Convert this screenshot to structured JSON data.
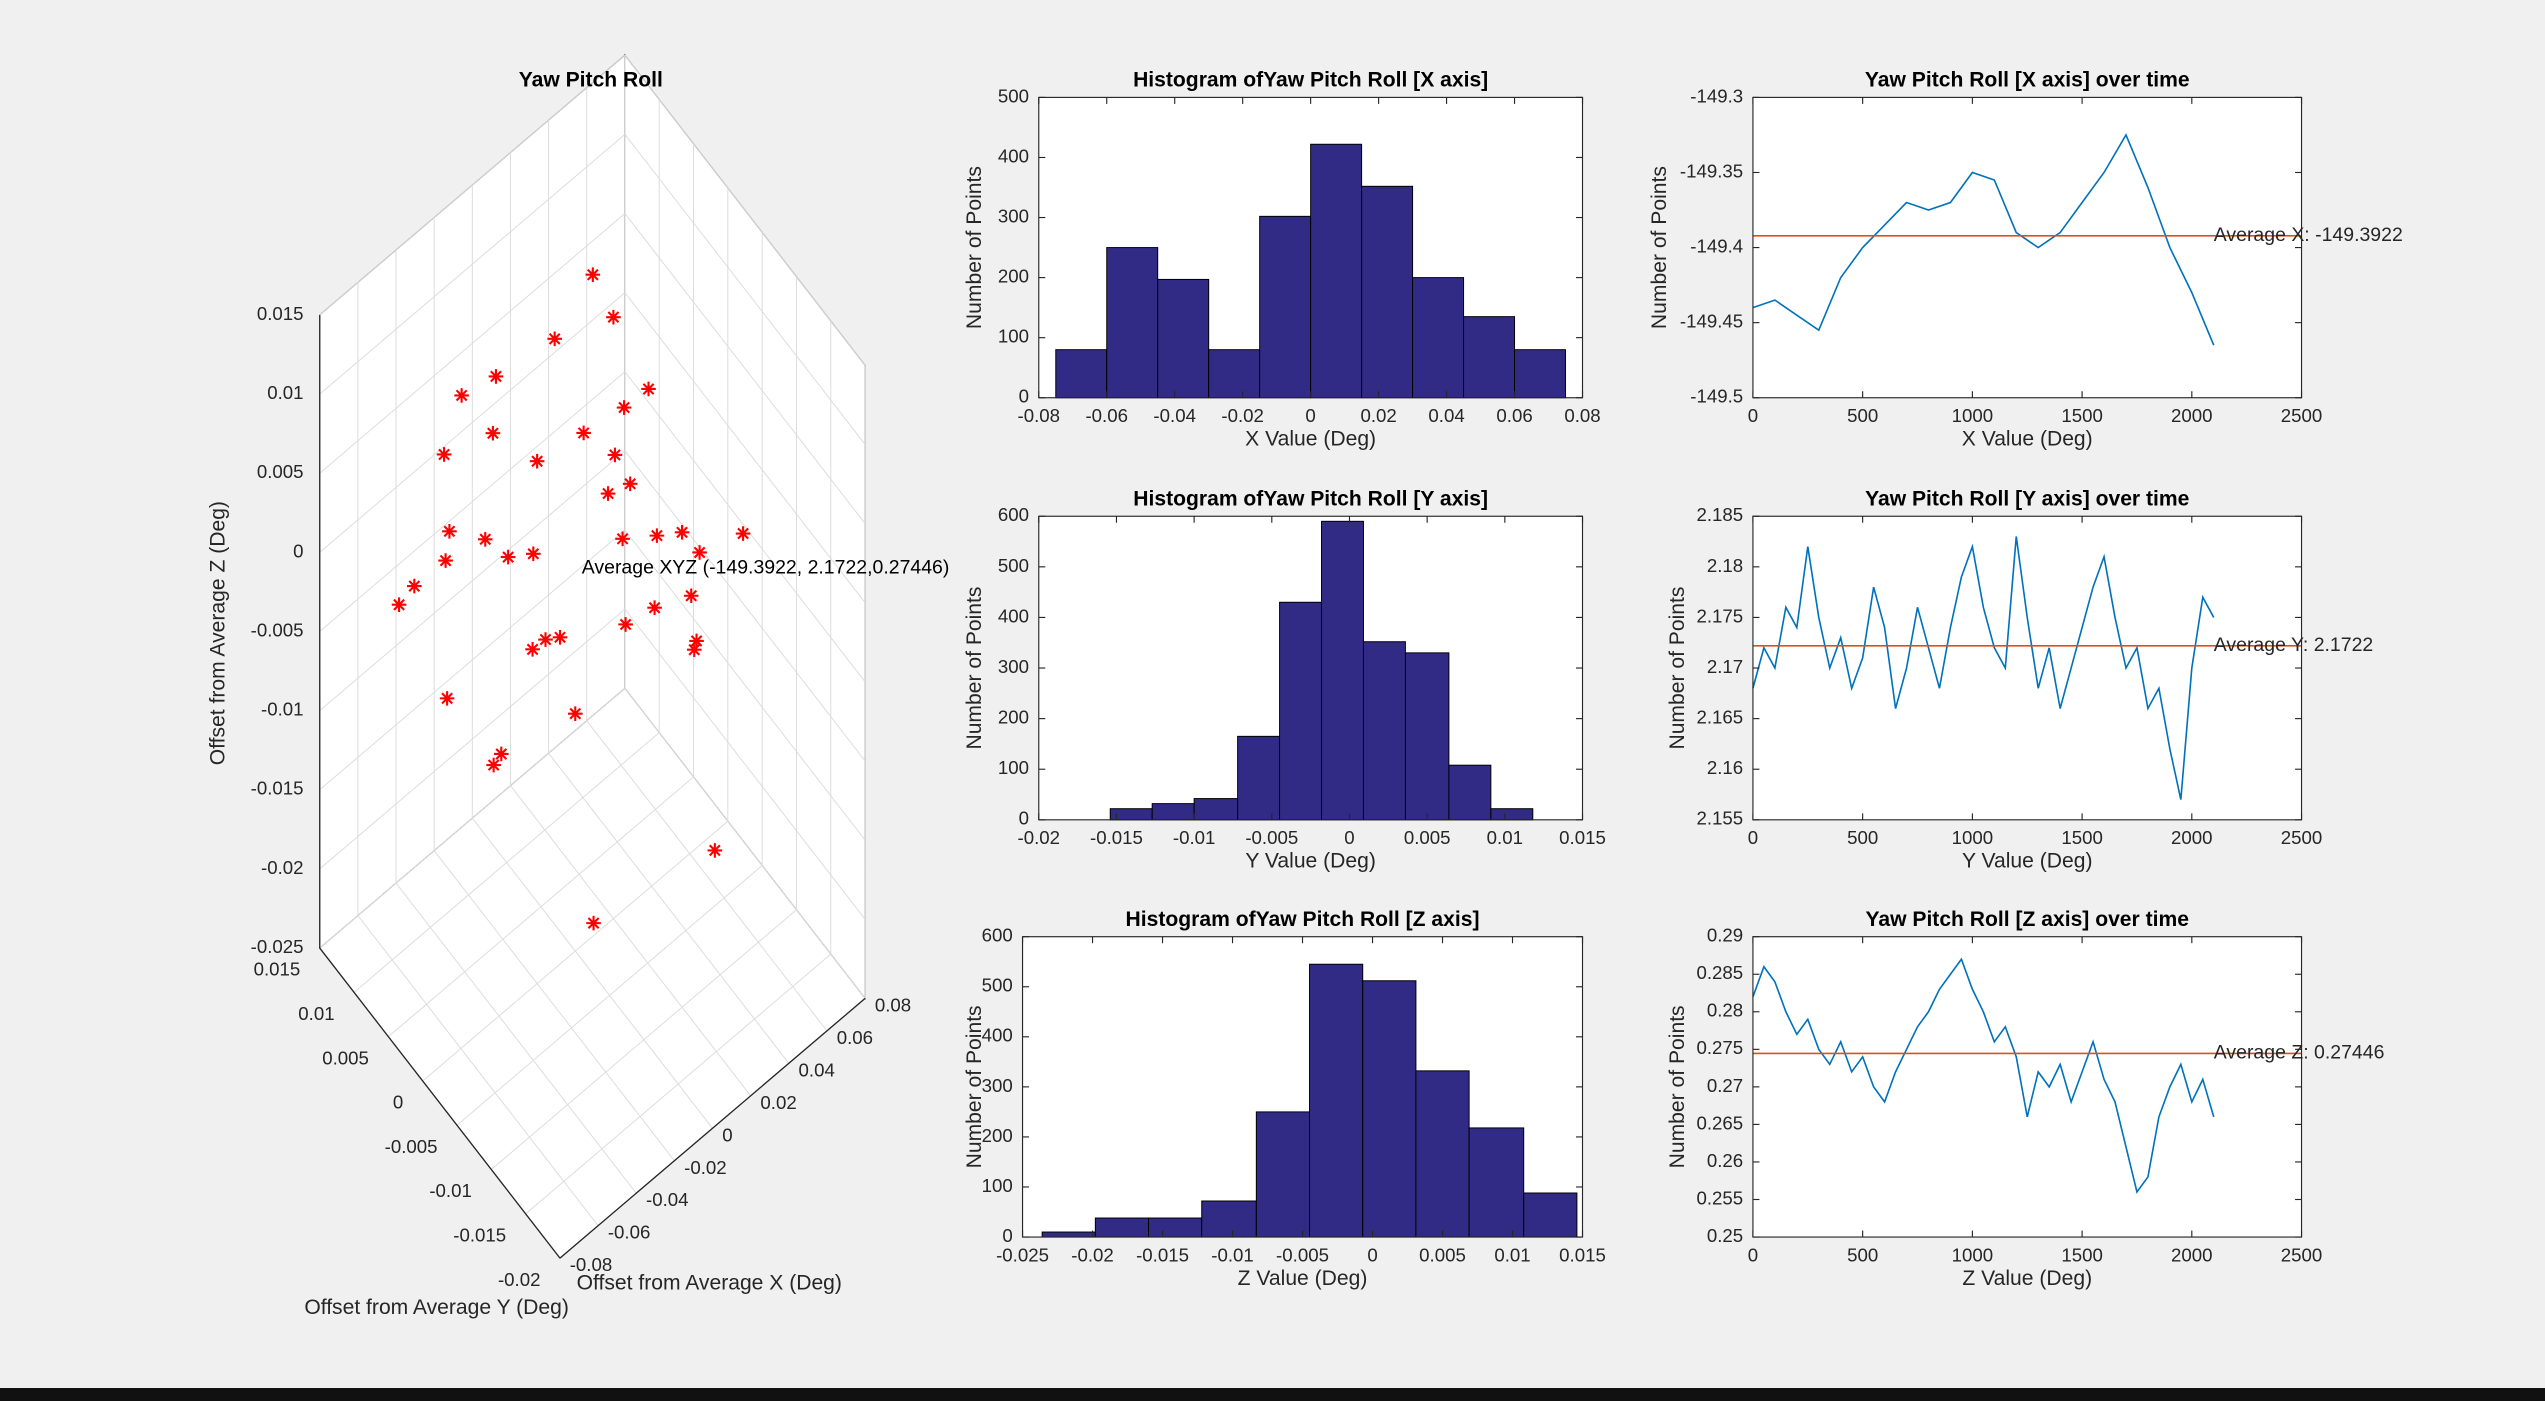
{
  "chart_data": [
    {
      "type": "scatter3d",
      "title": "Yaw Pitch Roll",
      "xlabel": "Offset from Average X (Deg)",
      "ylabel": "Offset from Average Y (Deg)",
      "zlabel": "Offset from Average Z (Deg)",
      "annotation": "Average XYZ (-149.3922, 2.1722,0.27446)",
      "color": "#ff0000",
      "xlim": [
        -0.08,
        0.08
      ],
      "ylim": [
        -0.02,
        0.015
      ],
      "zlim": [
        -0.025,
        0.015
      ],
      "xticks": [
        -0.08,
        -0.06,
        -0.04,
        -0.02,
        0,
        0.02,
        0.04,
        0.06,
        0.08
      ],
      "yticks": [
        -0.02,
        -0.015,
        -0.01,
        -0.005,
        0,
        0.005,
        0.01,
        0.015
      ],
      "zticks": [
        -0.025,
        -0.02,
        -0.015,
        -0.01,
        -0.005,
        0,
        0.005,
        0.01,
        0.015
      ],
      "x": [
        -0.05,
        -0.04,
        -0.06,
        -0.03,
        -0.02,
        0.0,
        0.01,
        0.02,
        0.03,
        0.04,
        0.05,
        0.06,
        -0.01,
        0.0,
        0.01,
        0.02,
        -0.03,
        -0.04,
        0.03,
        0.05,
        -0.02,
        -0.05,
        0.0,
        0.02,
        0.04,
        -0.06,
        -0.01,
        0.01,
        0.03,
        -0.02,
        0.06,
        -0.07,
        0.07,
        0.0,
        -0.03,
        0.02,
        0.05,
        -0.04,
        0.01,
        -0.01
      ],
      "y": [
        0.005,
        0.008,
        0.002,
        -0.004,
        0.0,
        0.003,
        -0.002,
        -0.006,
        0.001,
        0.004,
        -0.003,
        0.006,
        0.007,
        -0.008,
        0.009,
        -0.01,
        0.01,
        -0.005,
        -0.012,
        0.002,
        0.006,
        -0.002,
        0.0,
        0.003,
        -0.007,
        0.009,
        -0.004,
        0.005,
        -0.009,
        0.011,
        -0.001,
        0.004,
        -0.005,
        0.012,
        -0.011,
        0.0,
        0.007,
        0.002,
        -0.003,
        0.008
      ],
      "z": [
        0.002,
        0.006,
        -0.004,
        0.0,
        0.008,
        0.012,
        0.004,
        -0.002,
        -0.008,
        0.003,
        -0.006,
        0.001,
        -0.003,
        0.009,
        -0.012,
        0.005,
        -0.001,
        0.007,
        -0.015,
        -0.005,
        0.01,
        -0.007,
        -0.01,
        0.014,
        0.0,
        -0.002,
        0.011,
        -0.009,
        -0.004,
        0.006,
        -0.011,
        0.003,
        -0.003,
        0.001,
        -0.014,
        0.013,
        -0.008,
        0.004,
        0.007,
        -0.016
      ]
    },
    {
      "type": "histogram",
      "title": "Histogram ofYaw Pitch Roll [X axis]",
      "xlabel": "X Value (Deg)",
      "ylabel": "Number of Points",
      "color": "#312b85",
      "edgecolor": "#000000",
      "xlim": [
        -0.08,
        0.08
      ],
      "xticks": [
        -0.08,
        -0.06,
        -0.04,
        -0.02,
        0,
        0.02,
        0.04,
        0.06,
        0.08
      ],
      "ylim": [
        0,
        500
      ],
      "yticks": [
        0,
        100,
        200,
        300,
        400,
        500
      ],
      "bins": [
        -0.075,
        -0.06,
        -0.045,
        -0.03,
        -0.015,
        0,
        0.015,
        0.03,
        0.045,
        0.06,
        0.075
      ],
      "values": [
        80,
        250,
        197,
        80,
        302,
        422,
        352,
        200,
        135,
        80
      ]
    },
    {
      "type": "line",
      "title": "Yaw Pitch Roll [X axis] over time",
      "xlabel": "X Value (Deg)",
      "ylabel": "Number of Points",
      "xlim": [
        0,
        2500
      ],
      "xticks": [
        0,
        500,
        1000,
        1500,
        2000,
        2500
      ],
      "ylim": [
        -149.5,
        -149.3
      ],
      "yticks": [
        -149.5,
        -149.45,
        -149.4,
        -149.35,
        -149.3
      ],
      "x": [
        0,
        100,
        200,
        300,
        400,
        500,
        600,
        700,
        800,
        900,
        1000,
        1100,
        1200,
        1300,
        1400,
        1500,
        1600,
        1700,
        1800,
        1900,
        2000,
        2100
      ],
      "series": [
        {
          "color": "#0072bd",
          "values": [
            -149.44,
            -149.435,
            -149.445,
            -149.455,
            -149.42,
            -149.4,
            -149.385,
            -149.37,
            -149.375,
            -149.37,
            -149.35,
            -149.355,
            -149.39,
            -149.4,
            -149.39,
            -149.37,
            -149.35,
            -149.325,
            -149.36,
            -149.4,
            -149.43,
            -149.465
          ]
        }
      ],
      "average": {
        "value": -149.3922,
        "label": "Average X: -149.3922",
        "color": "#d95319"
      }
    },
    {
      "type": "histogram",
      "title": "Histogram ofYaw Pitch Roll [Y axis]",
      "xlabel": "Y Value (Deg)",
      "ylabel": "Number of Points",
      "color": "#312b85",
      "edgecolor": "#000000",
      "xlim": [
        -0.02,
        0.015
      ],
      "xticks": [
        -0.02,
        -0.015,
        -0.01,
        -0.005,
        0,
        0.005,
        0.01,
        0.015
      ],
      "ylim": [
        0,
        600
      ],
      "yticks": [
        0,
        100,
        200,
        300,
        400,
        500,
        600
      ],
      "bins": [
        -0.0154,
        -0.0127,
        -0.01,
        -0.0072,
        -0.0045,
        -0.0018,
        0.0009,
        0.0036,
        0.0064,
        0.0091,
        0.0118
      ],
      "values": [
        22,
        32,
        42,
        165,
        430,
        590,
        352,
        330,
        108,
        22
      ]
    },
    {
      "type": "line",
      "title": "Yaw Pitch Roll [Y axis] over time",
      "xlabel": "Y Value (Deg)",
      "ylabel": "Number of Points",
      "xlim": [
        0,
        2500
      ],
      "xticks": [
        0,
        500,
        1000,
        1500,
        2000,
        2500
      ],
      "ylim": [
        2.155,
        2.185
      ],
      "yticks": [
        2.155,
        2.16,
        2.165,
        2.17,
        2.175,
        2.18,
        2.185
      ],
      "x": [
        0,
        50,
        100,
        150,
        200,
        250,
        300,
        350,
        400,
        450,
        500,
        550,
        600,
        650,
        700,
        750,
        800,
        850,
        900,
        950,
        1000,
        1050,
        1100,
        1150,
        1200,
        1250,
        1300,
        1350,
        1400,
        1450,
        1500,
        1550,
        1600,
        1650,
        1700,
        1750,
        1800,
        1850,
        1900,
        1950,
        2000,
        2050,
        2100
      ],
      "series": [
        {
          "color": "#0072bd",
          "values": [
            2.168,
            2.172,
            2.17,
            2.176,
            2.174,
            2.182,
            2.175,
            2.17,
            2.173,
            2.168,
            2.171,
            2.178,
            2.174,
            2.166,
            2.17,
            2.176,
            2.172,
            2.168,
            2.174,
            2.179,
            2.182,
            2.176,
            2.172,
            2.17,
            2.183,
            2.175,
            2.168,
            2.172,
            2.166,
            2.17,
            2.174,
            2.178,
            2.181,
            2.175,
            2.17,
            2.172,
            2.166,
            2.168,
            2.162,
            2.157,
            2.17,
            2.177,
            2.175
          ]
        }
      ],
      "average": {
        "value": 2.1722,
        "label": "Average Y: 2.1722",
        "color": "#d95319"
      }
    },
    {
      "type": "histogram",
      "title": "Histogram ofYaw Pitch Roll [Z axis]",
      "xlabel": "Z Value (Deg)",
      "ylabel": "Number of Points",
      "color": "#312b85",
      "edgecolor": "#000000",
      "xlim": [
        -0.025,
        0.015
      ],
      "xticks": [
        -0.025,
        -0.02,
        -0.015,
        -0.01,
        -0.005,
        0,
        0.005,
        0.01,
        0.015
      ],
      "ylim": [
        0,
        600
      ],
      "yticks": [
        0,
        100,
        200,
        300,
        400,
        500,
        600
      ],
      "bins": [
        -0.0236,
        -0.0198,
        -0.016,
        -0.0122,
        -0.0083,
        -0.0045,
        -0.0007,
        0.0031,
        0.0069,
        0.0108,
        0.0146
      ],
      "values": [
        10,
        38,
        38,
        72,
        250,
        545,
        512,
        332,
        218,
        88
      ]
    },
    {
      "type": "line",
      "title": "Yaw Pitch Roll [Z axis] over time",
      "xlabel": "Z Value (Deg)",
      "ylabel": "Number of Points",
      "xlim": [
        0,
        2500
      ],
      "xticks": [
        0,
        500,
        1000,
        1500,
        2000,
        2500
      ],
      "ylim": [
        0.25,
        0.29
      ],
      "yticks": [
        0.25,
        0.255,
        0.26,
        0.265,
        0.27,
        0.275,
        0.28,
        0.285,
        0.29
      ],
      "x": [
        0,
        50,
        100,
        150,
        200,
        250,
        300,
        350,
        400,
        450,
        500,
        550,
        600,
        650,
        700,
        750,
        800,
        850,
        900,
        950,
        1000,
        1050,
        1100,
        1150,
        1200,
        1250,
        1300,
        1350,
        1400,
        1450,
        1500,
        1550,
        1600,
        1650,
        1700,
        1750,
        1800,
        1850,
        1900,
        1950,
        2000,
        2050,
        2100
      ],
      "series": [
        {
          "color": "#0072bd",
          "values": [
            0.282,
            0.286,
            0.284,
            0.28,
            0.277,
            0.279,
            0.275,
            0.273,
            0.276,
            0.272,
            0.274,
            0.27,
            0.268,
            0.272,
            0.275,
            0.278,
            0.28,
            0.283,
            0.285,
            0.287,
            0.283,
            0.28,
            0.276,
            0.278,
            0.274,
            0.266,
            0.272,
            0.27,
            0.273,
            0.268,
            0.272,
            0.276,
            0.271,
            0.268,
            0.262,
            0.256,
            0.258,
            0.266,
            0.27,
            0.273,
            0.268,
            0.271,
            0.266
          ]
        }
      ],
      "average": {
        "value": 0.27446,
        "label": "Average Z: 0.27446",
        "color": "#d95319"
      }
    }
  ]
}
